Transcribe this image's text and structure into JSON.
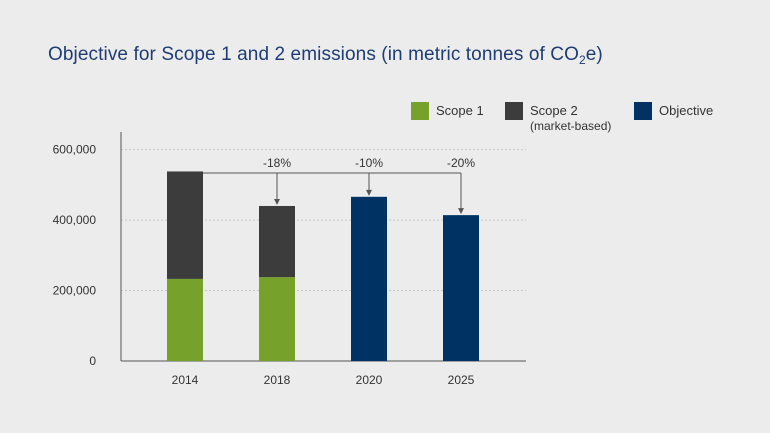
{
  "title": {
    "main": "Objective for Scope 1 and 2 emissions (in metric tonnes of CO",
    "subscript": "2",
    "suffix": "e)"
  },
  "legend": {
    "scope1": "Scope 1",
    "scope2_line1": "Scope 2",
    "scope2_line2": "(market-based)",
    "objective": "Objective"
  },
  "colors": {
    "scope1": "#76a12a",
    "scope2": "#3c3c3c",
    "objective": "#003264",
    "title": "#1f3d73",
    "axis": "#555555",
    "grid": "#c8c8c8",
    "connector": "#555555"
  },
  "chart_data": {
    "type": "bar",
    "stacked": true,
    "categories": [
      "2014",
      "2018",
      "2020",
      "2025"
    ],
    "series": [
      {
        "name": "Scope 1",
        "values": [
          233000,
          238000,
          null,
          null
        ]
      },
      {
        "name": "Scope 2 (market-based)",
        "values": [
          305000,
          202000,
          null,
          null
        ]
      },
      {
        "name": "Objective",
        "values": [
          null,
          null,
          466000,
          414000
        ]
      }
    ],
    "reductions": [
      "",
      "-18%",
      "-10%",
      "-20%"
    ],
    "yticks": [
      0,
      200000,
      400000,
      600000
    ],
    "ytick_labels": [
      "0",
      "200,000",
      "400,000",
      "600,000"
    ],
    "ylim": [
      0,
      650000
    ],
    "grid": true,
    "legend_position": "top"
  }
}
